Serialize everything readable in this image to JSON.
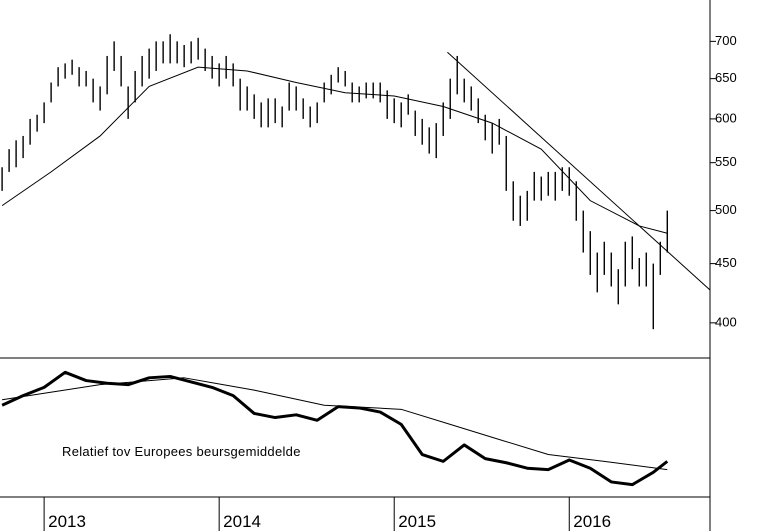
{
  "chart_data": [
    {
      "type": "ohlc",
      "log_scale": true,
      "color": "#000000",
      "xlim": [
        -0.3,
        101.1
      ],
      "categories": [
        null,
        null,
        null,
        null,
        null,
        null,
        "2013",
        null,
        null,
        null,
        null,
        null,
        null,
        null,
        null,
        null,
        null,
        null,
        null,
        null,
        null,
        null,
        null,
        null,
        null,
        null,
        null,
        null,
        null,
        null,
        null,
        "2014",
        null,
        null,
        null,
        null,
        null,
        null,
        null,
        null,
        null,
        null,
        null,
        null,
        null,
        null,
        null,
        null,
        null,
        null,
        null,
        null,
        null,
        null,
        null,
        null,
        "2015",
        null,
        null,
        null,
        null,
        null,
        null,
        null,
        null,
        null,
        null,
        null,
        null,
        null,
        null,
        null,
        null,
        null,
        null,
        null,
        null,
        null,
        null,
        null,
        null,
        "2016",
        null,
        null,
        null,
        null,
        null,
        null,
        null,
        null,
        null,
        null,
        null,
        null,
        null,
        null
      ],
      "high": [
        545,
        565,
        575,
        580,
        600,
        605,
        620,
        645,
        665,
        670,
        675,
        665,
        660,
        650,
        640,
        680,
        700,
        680,
        640,
        660,
        680,
        690,
        700,
        700,
        710,
        700,
        695,
        700,
        705,
        690,
        680,
        670,
        680,
        670,
        650,
        640,
        630,
        620,
        625,
        625,
        615,
        645,
        640,
        625,
        615,
        620,
        645,
        655,
        665,
        660,
        645,
        640,
        645,
        645,
        645,
        635,
        625,
        620,
        630,
        610,
        600,
        590,
        595,
        620,
        650,
        680,
        650,
        640,
        625,
        605,
        595,
        600,
        580,
        530,
        515,
        520,
        540,
        535,
        540,
        540,
        545,
        545,
        530,
        500,
        480,
        460,
        470,
        460,
        445,
        470,
        475,
        455,
        460,
        450,
        470,
        500
      ],
      "low": [
        520,
        540,
        545,
        555,
        570,
        585,
        595,
        620,
        640,
        650,
        655,
        640,
        640,
        620,
        610,
        630,
        660,
        640,
        600,
        620,
        640,
        650,
        660,
        670,
        670,
        670,
        665,
        670,
        675,
        660,
        650,
        640,
        650,
        640,
        610,
        610,
        600,
        590,
        590,
        595,
        590,
        610,
        610,
        600,
        590,
        595,
        620,
        630,
        645,
        640,
        620,
        620,
        625,
        625,
        620,
        600,
        595,
        590,
        605,
        580,
        570,
        560,
        555,
        580,
        600,
        630,
        620,
        610,
        595,
        575,
        560,
        570,
        520,
        490,
        485,
        490,
        510,
        510,
        515,
        510,
        520,
        515,
        490,
        460,
        440,
        425,
        440,
        430,
        415,
        430,
        445,
        430,
        430,
        395,
        440,
        460
      ],
      "ylim": [
        373,
        760
      ],
      "yticks": [
        400,
        450,
        500,
        550,
        600,
        650,
        700
      ],
      "moving_average": {
        "x": [
          0,
          7,
          14,
          21,
          28,
          35,
          42,
          49,
          56,
          63,
          70,
          77,
          84,
          91,
          95
        ],
        "values": [
          505,
          540,
          580,
          640,
          665,
          660,
          645,
          632,
          628,
          615,
          595,
          565,
          510,
          485,
          478
        ]
      },
      "trendline": {
        "x": [
          63.6,
          101.1
        ],
        "values": [
          685,
          427
        ]
      }
    },
    {
      "type": "line",
      "annotation": "Relatief tov Europees beursgemiddelde",
      "xlim": [
        -0.3,
        101.1
      ],
      "ylim": [
        0,
        100
      ],
      "series": [
        {
          "color": "#000000",
          "width": 3,
          "x": [
            0,
            3,
            6,
            9,
            12,
            15,
            18,
            21,
            24,
            27,
            30,
            33,
            36,
            39,
            42,
            45,
            48,
            51,
            54,
            57,
            60,
            63,
            66,
            69,
            72,
            75,
            78,
            81,
            84,
            87,
            90,
            93,
            95
          ],
          "values": [
            67,
            74,
            80,
            91,
            85,
            83,
            82,
            87,
            88,
            84,
            80,
            74,
            61,
            58,
            60,
            56,
            66,
            65,
            62,
            53,
            31,
            26,
            38,
            28,
            25,
            21,
            20,
            27,
            21,
            11,
            9,
            18,
            26
          ]
        },
        {
          "color": "#000000",
          "width": 1,
          "x": [
            0,
            14,
            26,
            36,
            46,
            57,
            64,
            71,
            78,
            86,
            95
          ],
          "values": [
            71,
            82,
            87,
            78,
            67,
            64,
            53,
            42,
            31,
            26,
            20
          ]
        }
      ]
    }
  ]
}
